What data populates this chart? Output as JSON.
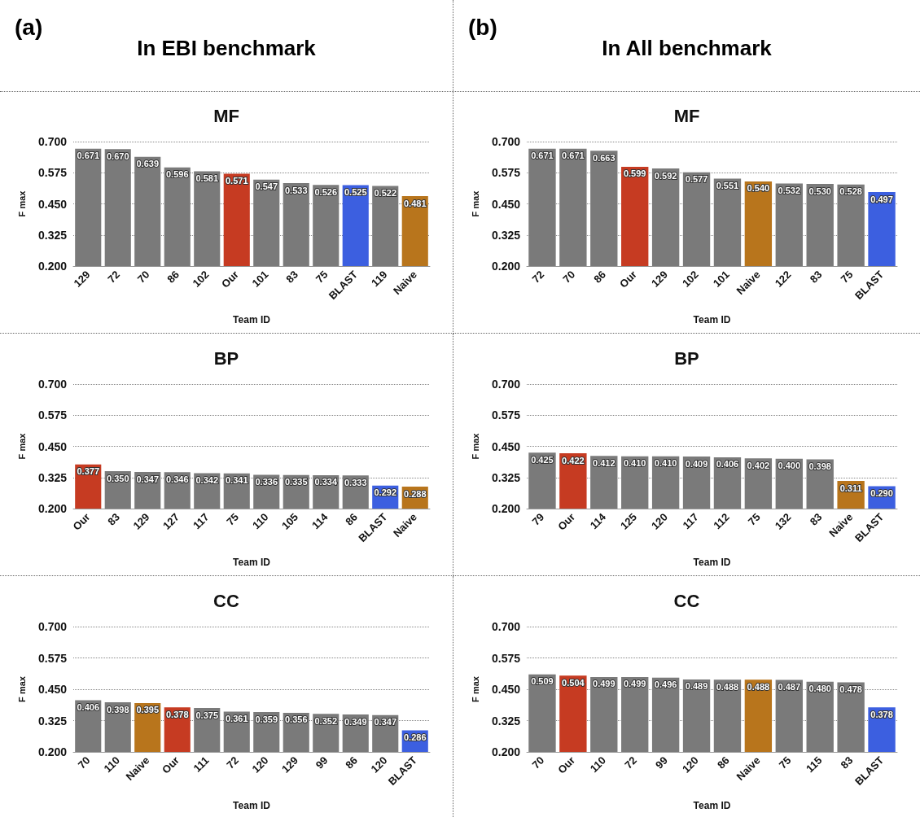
{
  "chart_data": [
    {
      "type": "bar",
      "title": "MF",
      "annotations": [
        "(a)",
        "In EBI benchmark"
      ],
      "xlabel": "Team ID",
      "ylabel": "F max",
      "ylim": [
        0.2,
        0.7
      ],
      "yticks": [
        {
          "value": 0.2,
          "label": "0.200"
        },
        {
          "value": 0.325,
          "label": "0.325"
        },
        {
          "value": 0.45,
          "label": "0.450"
        },
        {
          "value": 0.575,
          "label": "0.575"
        },
        {
          "value": 0.7,
          "label": "0.700"
        }
      ],
      "grid": "y",
      "categories": [
        "129",
        "72",
        "70",
        "86",
        "102",
        "Our",
        "101",
        "83",
        "75",
        "BLAST",
        "119",
        "Naive"
      ],
      "values": [
        0.671,
        0.67,
        0.639,
        0.596,
        0.581,
        0.571,
        0.547,
        0.533,
        0.526,
        0.525,
        0.522,
        0.481
      ],
      "value_labels": [
        "0.671",
        "0.670",
        "0.639",
        "0.596",
        "0.581",
        "0.571",
        "0.547",
        "0.533",
        "0.526",
        "0.525",
        "0.522",
        "0.481"
      ],
      "colors": [
        "#7a7a7a",
        "#7a7a7a",
        "#7a7a7a",
        "#7a7a7a",
        "#7a7a7a",
        "#c63b22",
        "#7a7a7a",
        "#7a7a7a",
        "#7a7a7a",
        "#3c5fe0",
        "#7a7a7a",
        "#b8751c"
      ]
    },
    {
      "type": "bar",
      "title": "MF",
      "annotations": [
        "(b)",
        "In All benchmark"
      ],
      "xlabel": "Team ID",
      "ylabel": "F max",
      "ylim": [
        0.2,
        0.7
      ],
      "yticks": [
        {
          "value": 0.2,
          "label": "0.200"
        },
        {
          "value": 0.325,
          "label": "0.325"
        },
        {
          "value": 0.45,
          "label": "0.450"
        },
        {
          "value": 0.575,
          "label": "0.575"
        },
        {
          "value": 0.7,
          "label": "0.700"
        }
      ],
      "grid": "y",
      "categories": [
        "72",
        "70",
        "86",
        "Our",
        "129",
        "102",
        "101",
        "Naive",
        "122",
        "83",
        "75",
        "BLAST"
      ],
      "values": [
        0.671,
        0.671,
        0.663,
        0.599,
        0.592,
        0.577,
        0.551,
        0.54,
        0.532,
        0.53,
        0.528,
        0.497
      ],
      "value_labels": [
        "0.671",
        "0.671",
        "0.663",
        "0.599",
        "0.592",
        "0.577",
        "0.551",
        "0.540",
        "0.532",
        "0.530",
        "0.528",
        "0.497"
      ],
      "colors": [
        "#7a7a7a",
        "#7a7a7a",
        "#7a7a7a",
        "#c63b22",
        "#7a7a7a",
        "#7a7a7a",
        "#7a7a7a",
        "#b8751c",
        "#7a7a7a",
        "#7a7a7a",
        "#7a7a7a",
        "#3c5fe0"
      ]
    },
    {
      "type": "bar",
      "title": "BP",
      "xlabel": "Team ID",
      "ylabel": "F max",
      "ylim": [
        0.2,
        0.7
      ],
      "yticks": [
        {
          "value": 0.2,
          "label": "0.200"
        },
        {
          "value": 0.325,
          "label": "0.325"
        },
        {
          "value": 0.45,
          "label": "0.450"
        },
        {
          "value": 0.575,
          "label": "0.575"
        },
        {
          "value": 0.7,
          "label": "0.700"
        }
      ],
      "grid": "y",
      "categories": [
        "Our",
        "83",
        "129",
        "127",
        "117",
        "75",
        "110",
        "105",
        "114",
        "86",
        "BLAST",
        "Naive"
      ],
      "values": [
        0.377,
        0.35,
        0.347,
        0.346,
        0.342,
        0.341,
        0.336,
        0.335,
        0.334,
        0.333,
        0.292,
        0.288
      ],
      "value_labels": [
        "0.377",
        "0.350",
        "0.347",
        "0.346",
        "0.342",
        "0.341",
        "0.336",
        "0.335",
        "0.334",
        "0.333",
        "0.292",
        "0.288"
      ],
      "colors": [
        "#c63b22",
        "#7a7a7a",
        "#7a7a7a",
        "#7a7a7a",
        "#7a7a7a",
        "#7a7a7a",
        "#7a7a7a",
        "#7a7a7a",
        "#7a7a7a",
        "#7a7a7a",
        "#3c5fe0",
        "#b8751c"
      ]
    },
    {
      "type": "bar",
      "title": "BP",
      "xlabel": "Team ID",
      "ylabel": "F max",
      "ylim": [
        0.2,
        0.7
      ],
      "yticks": [
        {
          "value": 0.2,
          "label": "0.200"
        },
        {
          "value": 0.325,
          "label": "0.325"
        },
        {
          "value": 0.45,
          "label": "0.450"
        },
        {
          "value": 0.575,
          "label": "0.575"
        },
        {
          "value": 0.7,
          "label": "0.700"
        }
      ],
      "grid": "y",
      "categories": [
        "79",
        "Our",
        "114",
        "125",
        "120",
        "117",
        "112",
        "75",
        "132",
        "83",
        "Naive",
        "BLAST"
      ],
      "values": [
        0.425,
        0.422,
        0.412,
        0.41,
        0.41,
        0.409,
        0.406,
        0.402,
        0.4,
        0.398,
        0.311,
        0.29
      ],
      "value_labels": [
        "0.425",
        "0.422",
        "0.412",
        "0.410",
        "0.410",
        "0.409",
        "0.406",
        "0.402",
        "0.400",
        "0.398",
        "0.311",
        "0.290"
      ],
      "colors": [
        "#7a7a7a",
        "#c63b22",
        "#7a7a7a",
        "#7a7a7a",
        "#7a7a7a",
        "#7a7a7a",
        "#7a7a7a",
        "#7a7a7a",
        "#7a7a7a",
        "#7a7a7a",
        "#b8751c",
        "#3c5fe0"
      ]
    },
    {
      "type": "bar",
      "title": "CC",
      "xlabel": "Team ID",
      "ylabel": "F max",
      "ylim": [
        0.2,
        0.7
      ],
      "yticks": [
        {
          "value": 0.2,
          "label": "0.200"
        },
        {
          "value": 0.325,
          "label": "0.325"
        },
        {
          "value": 0.45,
          "label": "0.450"
        },
        {
          "value": 0.575,
          "label": "0.575"
        },
        {
          "value": 0.7,
          "label": "0.700"
        }
      ],
      "grid": "y",
      "categories": [
        "70",
        "110",
        "Naive",
        "Our",
        "111",
        "72",
        "120",
        "129",
        "99",
        "86",
        "120",
        "BLAST"
      ],
      "values": [
        0.406,
        0.398,
        0.395,
        0.378,
        0.375,
        0.361,
        0.359,
        0.356,
        0.352,
        0.349,
        0.347,
        0.286
      ],
      "value_labels": [
        "0.406",
        "0.398",
        "0.395",
        "0.378",
        "0.375",
        "0.361",
        "0.359",
        "0.356",
        "0.352",
        "0.349",
        "0.347",
        "0.286"
      ],
      "colors": [
        "#7a7a7a",
        "#7a7a7a",
        "#b8751c",
        "#c63b22",
        "#7a7a7a",
        "#7a7a7a",
        "#7a7a7a",
        "#7a7a7a",
        "#7a7a7a",
        "#7a7a7a",
        "#7a7a7a",
        "#3c5fe0"
      ]
    },
    {
      "type": "bar",
      "title": "CC",
      "xlabel": "Team ID",
      "ylabel": "F max",
      "ylim": [
        0.2,
        0.7
      ],
      "yticks": [
        {
          "value": 0.2,
          "label": "0.200"
        },
        {
          "value": 0.325,
          "label": "0.325"
        },
        {
          "value": 0.45,
          "label": "0.450"
        },
        {
          "value": 0.575,
          "label": "0.575"
        },
        {
          "value": 0.7,
          "label": "0.700"
        }
      ],
      "grid": "y",
      "categories": [
        "70",
        "Our",
        "110",
        "72",
        "99",
        "120",
        "86",
        "Naive",
        "75",
        "115",
        "83",
        "BLAST"
      ],
      "values": [
        0.509,
        0.504,
        0.499,
        0.499,
        0.496,
        0.489,
        0.488,
        0.488,
        0.487,
        0.48,
        0.478,
        0.378
      ],
      "value_labels": [
        "0.509",
        "0.504",
        "0.499",
        "0.499",
        "0.496",
        "0.489",
        "0.488",
        "0.488",
        "0.487",
        "0.480",
        "0.478",
        "0.378"
      ],
      "colors": [
        "#7a7a7a",
        "#c63b22",
        "#7a7a7a",
        "#7a7a7a",
        "#7a7a7a",
        "#7a7a7a",
        "#7a7a7a",
        "#b8751c",
        "#7a7a7a",
        "#7a7a7a",
        "#7a7a7a",
        "#3c5fe0"
      ]
    }
  ]
}
